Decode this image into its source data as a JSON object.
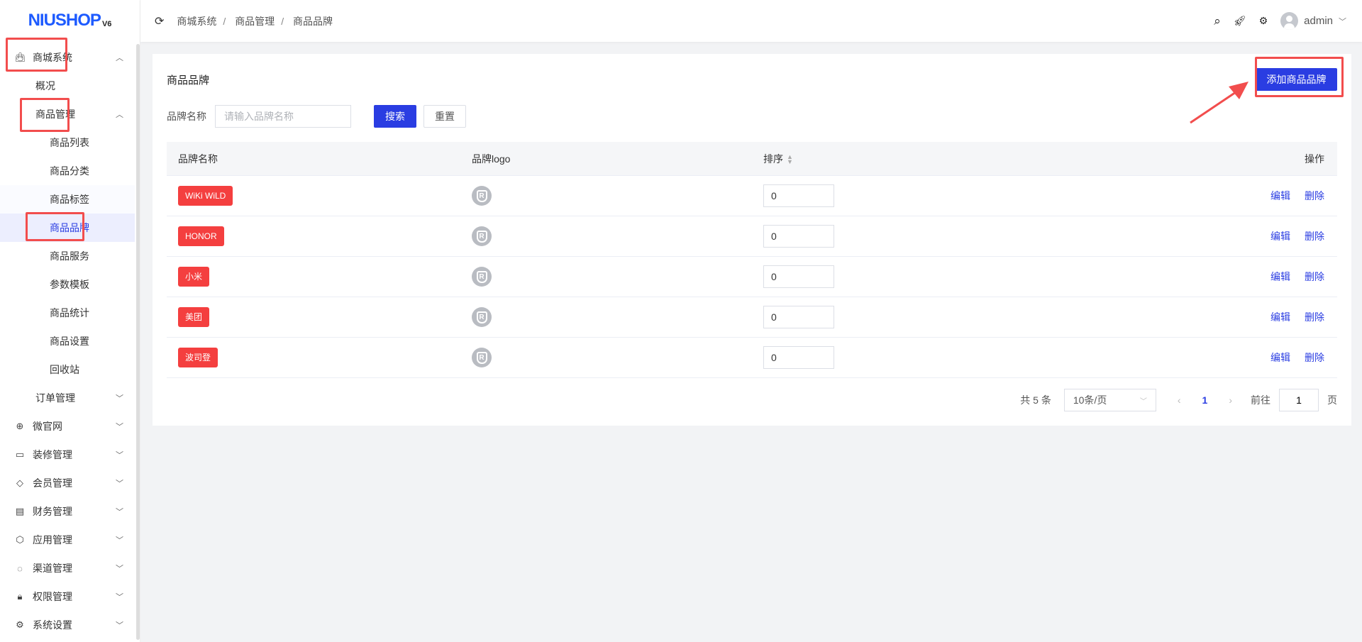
{
  "logo": {
    "text": "NIUSHOP",
    "version": "V6"
  },
  "sidebar": {
    "mall": "商城系统",
    "overview": "概况",
    "goods_mgmt": "商品管理",
    "goods_sub": [
      "商品列表",
      "商品分类",
      "商品标签",
      "商品品牌",
      "商品服务",
      "参数模板",
      "商品统计",
      "商品设置",
      "回收站"
    ],
    "order": "订单管理",
    "groups": [
      {
        "label": "微官网",
        "icon": "globe-icon",
        "glyph": "⊕"
      },
      {
        "label": "装修管理",
        "icon": "decoration-icon",
        "glyph": "▭"
      },
      {
        "label": "会员管理",
        "icon": "diamond-icon",
        "glyph": "◇"
      },
      {
        "label": "财务管理",
        "icon": "finance-icon",
        "glyph": "▤"
      },
      {
        "label": "应用管理",
        "icon": "cube-icon",
        "glyph": "⬡"
      },
      {
        "label": "渠道管理",
        "icon": "channel-icon",
        "glyph": "◌"
      },
      {
        "label": "权限管理",
        "icon": "lock-icon",
        "glyph": "🔒︎"
      },
      {
        "label": "系统设置",
        "icon": "settings-icon",
        "glyph": "⚙"
      }
    ]
  },
  "header": {
    "breadcrumb": [
      "商城系统",
      "商品管理",
      "商品品牌"
    ],
    "user": "admin"
  },
  "page": {
    "title": "商品品牌",
    "add_button": "添加商品品牌",
    "filter_label": "品牌名称",
    "filter_placeholder": "请输入品牌名称",
    "filter_value": "",
    "search": "搜索",
    "reset": "重置"
  },
  "table": {
    "headers": [
      "品牌名称",
      "品牌logo",
      "排序",
      "操作"
    ],
    "rows": [
      {
        "name": "WiKi WiLD",
        "sort": "0"
      },
      {
        "name": "HONOR",
        "sort": "0"
      },
      {
        "name": "小米",
        "sort": "0"
      },
      {
        "name": "美团",
        "sort": "0"
      },
      {
        "name": "波司登",
        "sort": "0"
      }
    ],
    "edit": "编辑",
    "delete": "删除"
  },
  "pagination": {
    "total": "共 5 条",
    "page_size": "10条/页",
    "current": "1",
    "goto": "前往",
    "goto_value": "1",
    "page_unit": "页"
  },
  "colors": {
    "primary": "#2a3de2",
    "tag": "#f43f3f",
    "annotation": "#f24d4d"
  }
}
